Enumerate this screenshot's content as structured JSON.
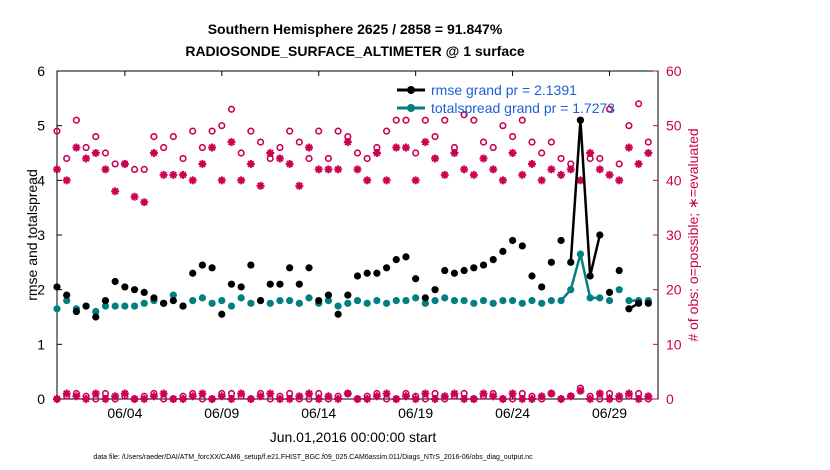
{
  "chart_data": {
    "type": "line",
    "title_line1": "Southern Hemisphere 2625 / 2858 = 91.847%",
    "title_line2": "RADIOSONDE_SURFACE_ALTIMETER @ 1 surface",
    "xlabel": "Jun.01,2016 00:00:00 start",
    "ylabel_left": "rmse and totalspread",
    "ylabel_right": "# of obs: o=possible; ∗=evaluated",
    "xlim": [
      0.0,
      31.0
    ],
    "ylim_left": [
      0,
      6
    ],
    "ylim_right": [
      0,
      60
    ],
    "x_ticks": [
      {
        "x": 3.5,
        "label": "06/04"
      },
      {
        "x": 8.5,
        "label": "06/09"
      },
      {
        "x": 13.5,
        "label": "06/14"
      },
      {
        "x": 18.5,
        "label": "06/19"
      },
      {
        "x": 23.5,
        "label": "06/24"
      },
      {
        "x": 28.5,
        "label": "06/29"
      }
    ],
    "y_ticks_left": [
      "0",
      "1",
      "2",
      "3",
      "4",
      "5",
      "6"
    ],
    "y_ticks_right": [
      "0",
      "10",
      "20",
      "30",
      "40",
      "50",
      "60"
    ],
    "colors": {
      "rmse": "#000000",
      "spread": "#008080",
      "obs": "#cc0052",
      "legend_text": "#1f5fd6"
    },
    "series": [
      {
        "name": "rmse grand pr = 2.1391",
        "axis": "left",
        "x": [
          0.0,
          0.5,
          1.0,
          1.5,
          2.0,
          2.5,
          3.0,
          3.5,
          4.0,
          4.5,
          5.0,
          5.5,
          6.0,
          6.5,
          7.0,
          7.5,
          8.0,
          8.5,
          9.0,
          9.5,
          10.0,
          10.5,
          11.0,
          11.5,
          12.0,
          12.5,
          13.0,
          13.5,
          14.0,
          14.5,
          15.0,
          15.5,
          16.0,
          16.5,
          17.0,
          17.5,
          18.0,
          18.5,
          19.0,
          19.5,
          20.0,
          20.5,
          21.0,
          21.5,
          22.0,
          22.5,
          23.0,
          23.5,
          24.0,
          24.5,
          25.0,
          25.5,
          26.0,
          26.5,
          27.0,
          27.5,
          28.0,
          28.5,
          29.0,
          29.5,
          30.0,
          30.5
        ],
        "values": [
          2.05,
          1.9,
          1.6,
          1.7,
          1.5,
          1.8,
          2.15,
          2.05,
          2.0,
          1.95,
          1.85,
          1.75,
          1.8,
          1.7,
          2.3,
          2.45,
          2.4,
          1.55,
          2.1,
          2.05,
          2.45,
          1.8,
          2.1,
          2.1,
          2.4,
          2.1,
          2.4,
          1.8,
          1.9,
          1.55,
          1.9,
          2.25,
          2.3,
          2.3,
          2.4,
          2.55,
          2.6,
          2.2,
          1.85,
          2.0,
          2.35,
          2.3,
          2.35,
          2.4,
          2.45,
          2.55,
          2.7,
          2.9,
          2.8,
          2.25,
          2.05,
          2.5,
          2.9,
          2.5,
          5.1,
          2.25,
          3.0,
          1.95,
          2.35,
          1.65,
          1.75,
          1.75
        ]
      },
      {
        "name": "totalspread grand pr = 1.7273",
        "axis": "left",
        "x": [
          0.0,
          0.5,
          1.0,
          1.5,
          2.0,
          2.5,
          3.0,
          3.5,
          4.0,
          4.5,
          5.0,
          5.5,
          6.0,
          6.5,
          7.0,
          7.5,
          8.0,
          8.5,
          9.0,
          9.5,
          10.0,
          10.5,
          11.0,
          11.5,
          12.0,
          12.5,
          13.0,
          13.5,
          14.0,
          14.5,
          15.0,
          15.5,
          16.0,
          16.5,
          17.0,
          17.5,
          18.0,
          18.5,
          19.0,
          19.5,
          20.0,
          20.5,
          21.0,
          21.5,
          22.0,
          22.5,
          23.0,
          23.5,
          24.0,
          24.5,
          25.0,
          25.5,
          26.0,
          26.5,
          27.0,
          27.5,
          28.0,
          28.5,
          29.0,
          29.5,
          30.0,
          30.5
        ],
        "values": [
          1.65,
          1.8,
          1.65,
          1.7,
          1.6,
          1.7,
          1.7,
          1.7,
          1.7,
          1.75,
          1.8,
          1.75,
          1.9,
          1.7,
          1.8,
          1.85,
          1.75,
          1.8,
          1.7,
          1.85,
          1.75,
          1.8,
          1.75,
          1.8,
          1.8,
          1.75,
          1.85,
          1.75,
          1.8,
          1.7,
          1.75,
          1.8,
          1.75,
          1.8,
          1.75,
          1.8,
          1.8,
          1.85,
          1.75,
          1.8,
          1.85,
          1.8,
          1.8,
          1.75,
          1.8,
          1.75,
          1.8,
          1.8,
          1.75,
          1.8,
          1.75,
          1.8,
          1.8,
          2.0,
          2.65,
          1.85,
          1.85,
          1.8,
          2.0,
          1.8,
          1.8,
          1.8
        ]
      },
      {
        "name": "possible",
        "axis": "right",
        "x": [
          0.0,
          0.5,
          1.0,
          1.5,
          2.0,
          2.5,
          3.0,
          3.5,
          4.0,
          4.5,
          5.0,
          5.5,
          6.0,
          6.5,
          7.0,
          7.5,
          8.0,
          8.5,
          9.0,
          9.5,
          10.0,
          10.5,
          11.0,
          11.5,
          12.0,
          12.5,
          13.0,
          13.5,
          14.0,
          14.5,
          15.0,
          15.5,
          16.0,
          16.5,
          17.0,
          17.5,
          18.0,
          18.5,
          19.0,
          19.5,
          20.0,
          20.5,
          21.0,
          21.5,
          22.0,
          22.5,
          23.0,
          23.5,
          24.0,
          24.5,
          25.0,
          25.5,
          26.0,
          26.5,
          27.0,
          27.5,
          28.0,
          28.5,
          29.0,
          29.5,
          30.0,
          30.5
        ],
        "values": [
          49,
          44,
          51,
          46,
          48,
          45,
          43,
          43,
          42,
          42,
          48,
          46,
          48,
          44,
          49,
          46,
          49,
          50,
          53,
          45,
          49,
          47,
          44,
          46,
          49,
          47,
          44,
          49,
          44,
          49,
          48,
          45,
          44,
          46,
          49,
          51,
          51,
          45,
          51,
          48,
          51,
          46,
          52,
          51,
          47,
          46,
          50,
          48,
          51,
          47,
          45,
          47,
          44,
          43,
          51,
          44,
          44,
          53,
          43,
          50,
          54,
          47
        ]
      },
      {
        "name": "evaluated",
        "axis": "right",
        "x": [
          0.0,
          0.5,
          1.0,
          1.5,
          2.0,
          2.5,
          3.0,
          3.5,
          4.0,
          4.5,
          5.0,
          5.5,
          6.0,
          6.5,
          7.0,
          7.5,
          8.0,
          8.5,
          9.0,
          9.5,
          10.0,
          10.5,
          11.0,
          11.5,
          12.0,
          12.5,
          13.0,
          13.5,
          14.0,
          14.5,
          15.0,
          15.5,
          16.0,
          16.5,
          17.0,
          17.5,
          18.0,
          18.5,
          19.0,
          19.5,
          20.0,
          20.5,
          21.0,
          21.5,
          22.0,
          22.5,
          23.0,
          23.5,
          24.0,
          24.5,
          25.0,
          25.5,
          26.0,
          26.5,
          27.0,
          27.5,
          28.0,
          28.5,
          29.0,
          29.5,
          30.0,
          30.5
        ],
        "values": [
          42,
          40,
          46,
          44,
          45,
          42,
          38,
          43,
          37,
          36,
          45,
          41,
          41,
          41,
          40,
          43,
          46,
          40,
          47,
          40,
          43,
          39,
          45,
          44,
          43,
          39,
          46,
          42,
          42,
          42,
          47,
          42,
          40,
          45,
          40,
          46,
          46,
          40,
          47,
          44,
          41,
          45,
          42,
          41,
          44,
          42,
          40,
          45,
          41,
          43,
          40,
          42,
          41,
          42,
          40,
          45,
          42,
          41,
          40,
          46,
          43,
          45
        ]
      }
    ],
    "obs_bottom": {
      "possible_x": [
        0.0,
        0.5,
        1.0,
        1.5,
        2.0,
        2.5,
        3.0,
        3.5,
        4.0,
        4.5,
        5.0,
        5.5,
        6.0,
        6.5,
        7.0,
        7.5,
        8.0,
        8.5,
        9.0,
        9.5,
        10.0,
        10.5,
        11.0,
        11.5,
        12.0,
        12.5,
        13.0,
        13.5,
        14.0,
        14.5,
        15.0,
        15.5,
        16.0,
        16.5,
        17.0,
        17.5,
        18.0,
        18.5,
        19.0,
        19.5,
        20.0,
        20.5,
        21.0,
        21.5,
        22.0,
        22.5,
        23.0,
        23.5,
        24.0,
        24.5,
        25.0,
        25.5,
        26.0,
        26.5,
        27.0,
        27.5,
        28.0,
        28.5,
        29.0,
        29.5,
        30.0,
        30.5
      ],
      "possible_values": [
        0,
        0.5,
        1,
        0.5,
        0,
        1,
        0,
        0.5,
        0,
        0.5,
        1,
        0,
        0,
        0.5,
        1,
        0,
        0,
        1,
        1,
        0.5,
        0,
        1,
        0,
        0.5,
        1,
        0,
        0,
        1,
        0,
        0.5,
        1,
        0,
        0.5,
        1,
        0,
        0,
        1,
        0.5,
        0,
        1,
        0,
        0.5,
        1,
        0,
        0.5,
        1,
        0,
        0,
        1,
        0.5,
        0,
        1,
        0,
        0.5,
        2,
        0.5,
        0,
        1,
        0,
        0.5,
        1,
        0
      ],
      "evaluated_values": [
        0,
        1,
        0.5,
        0,
        1,
        0,
        0.5,
        1,
        0,
        0,
        0.5,
        1,
        0,
        0,
        0.5,
        1,
        0,
        0.5,
        0,
        1,
        0,
        0.5,
        1,
        0,
        0,
        0.5,
        1,
        0,
        0.5,
        0,
        1,
        0,
        0,
        0.5,
        1,
        0,
        0.5,
        0,
        1,
        0,
        0.5,
        1,
        0,
        0,
        1,
        0.5,
        0,
        1,
        0,
        0,
        0.5,
        1,
        0,
        0.5,
        1.5,
        0,
        1,
        0,
        0.5,
        1,
        0,
        0.5
      ]
    },
    "legend": [
      {
        "label": "rmse grand pr = 2.1391",
        "series": "rmse"
      },
      {
        "label": "totalspread grand pr = 1.7273",
        "series": "spread"
      }
    ],
    "legend_position": "top-right"
  },
  "footnote": "data file: /Users/raeder/DAI/ATM_forcXX/CAM6_setup/f.e21.FHIST_BGC.f09_025.CAM6assim.011/Diags_NTrS_2016-06/obs_diag_output.nc"
}
